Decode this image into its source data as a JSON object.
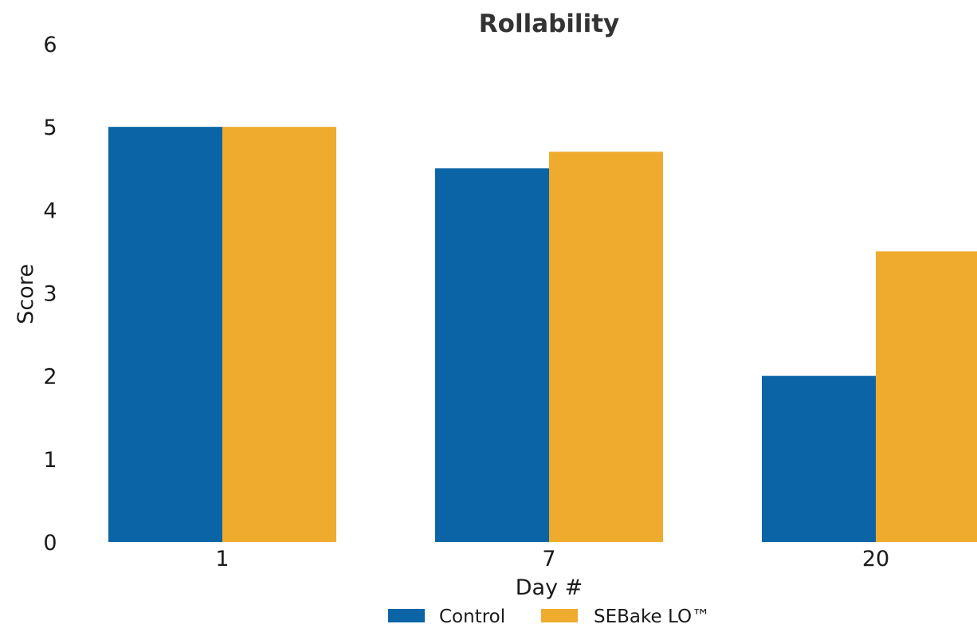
{
  "chart_data": {
    "type": "bar",
    "title": "Rollability",
    "xlabel": "Day #",
    "ylabel": "Score",
    "categories": [
      "1",
      "7",
      "20"
    ],
    "ylim": [
      0,
      6
    ],
    "yticks": [
      0,
      1,
      2,
      3,
      4,
      5,
      6
    ],
    "grid": false,
    "legend_position": "bottom-center",
    "series": [
      {
        "name": "Control",
        "color": "#0a64a5",
        "values": [
          5,
          4.5,
          2
        ]
      },
      {
        "name": "SEBake LO™",
        "color": "#eeab2e",
        "values": [
          5,
          4.7,
          3.5
        ]
      }
    ]
  }
}
